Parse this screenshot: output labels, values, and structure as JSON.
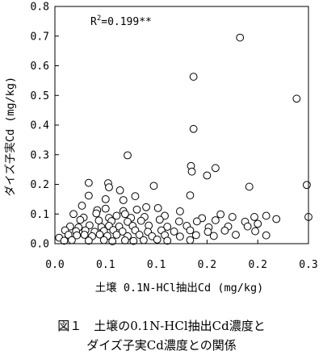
{
  "caption": {
    "line1": "図１　土壌の0.1N-HCl抽出Cd濃度と",
    "line2": "ダイズ子実Cd濃度との関係"
  },
  "chart_data": {
    "type": "scatter",
    "xlabel": "土壌 0.1N-HCl抽出Cd (mg/kg)",
    "ylabel": "ダイズ子実Cd (mg/kg)",
    "xlim": [
      0,
      0.3
    ],
    "ylim": [
      0,
      0.8
    ],
    "x_ticks": [
      "0.0",
      "0.1",
      "0.1",
      "0.2",
      "0.2",
      "0.3"
    ],
    "y_ticks": [
      "0.0",
      "0.1",
      "0.2",
      "0.3",
      "0.4",
      "0.5",
      "0.6",
      "0.7",
      "0.8"
    ],
    "annotation": {
      "base": "R",
      "sup": "2",
      "rest": "=0.199**"
    },
    "grid": false,
    "marker": "open-circle",
    "points": [
      [
        0.219,
        0.695
      ],
      [
        0.164,
        0.563
      ],
      [
        0.286,
        0.489
      ],
      [
        0.164,
        0.387
      ],
      [
        0.086,
        0.298
      ],
      [
        0.161,
        0.262
      ],
      [
        0.162,
        0.243
      ],
      [
        0.19,
        0.255
      ],
      [
        0.18,
        0.23
      ],
      [
        0.23,
        0.192
      ],
      [
        0.04,
        0.205
      ],
      [
        0.063,
        0.204
      ],
      [
        0.064,
        0.19
      ],
      [
        0.117,
        0.195
      ],
      [
        0.298,
        0.198
      ],
      [
        0.077,
        0.18
      ],
      [
        0.095,
        0.16
      ],
      [
        0.16,
        0.163
      ],
      [
        0.04,
        0.162
      ],
      [
        0.06,
        0.15
      ],
      [
        0.081,
        0.147
      ],
      [
        0.032,
        0.128
      ],
      [
        0.108,
        0.123
      ],
      [
        0.05,
        0.113
      ],
      [
        0.06,
        0.118
      ],
      [
        0.081,
        0.11
      ],
      [
        0.097,
        0.115
      ],
      [
        0.122,
        0.12
      ],
      [
        0.022,
        0.1
      ],
      [
        0.049,
        0.102
      ],
      [
        0.083,
        0.1
      ],
      [
        0.148,
        0.109
      ],
      [
        0.196,
        0.099
      ],
      [
        0.25,
        0.094
      ],
      [
        0.236,
        0.09
      ],
      [
        0.262,
        0.083
      ],
      [
        0.034,
        0.088
      ],
      [
        0.064,
        0.087
      ],
      [
        0.073,
        0.094
      ],
      [
        0.09,
        0.087
      ],
      [
        0.106,
        0.09
      ],
      [
        0.13,
        0.094
      ],
      [
        0.174,
        0.086
      ],
      [
        0.21,
        0.09
      ],
      [
        0.03,
        0.08
      ],
      [
        0.052,
        0.078
      ],
      [
        0.067,
        0.076
      ],
      [
        0.086,
        0.074
      ],
      [
        0.102,
        0.077
      ],
      [
        0.124,
        0.081
      ],
      [
        0.147,
        0.075
      ],
      [
        0.168,
        0.075
      ],
      [
        0.19,
        0.079
      ],
      [
        0.225,
        0.074
      ],
      [
        0.24,
        0.067
      ],
      [
        0.3,
        0.09
      ],
      [
        0.018,
        0.058
      ],
      [
        0.028,
        0.055
      ],
      [
        0.041,
        0.062
      ],
      [
        0.055,
        0.056
      ],
      [
        0.064,
        0.06
      ],
      [
        0.076,
        0.058
      ],
      [
        0.092,
        0.06
      ],
      [
        0.111,
        0.061
      ],
      [
        0.133,
        0.057
      ],
      [
        0.156,
        0.06
      ],
      [
        0.182,
        0.055
      ],
      [
        0.205,
        0.058
      ],
      [
        0.228,
        0.058
      ],
      [
        0.012,
        0.045
      ],
      [
        0.025,
        0.042
      ],
      [
        0.036,
        0.045
      ],
      [
        0.047,
        0.04
      ],
      [
        0.058,
        0.043
      ],
      [
        0.069,
        0.046
      ],
      [
        0.08,
        0.041
      ],
      [
        0.095,
        0.045
      ],
      [
        0.11,
        0.04
      ],
      [
        0.126,
        0.045
      ],
      [
        0.141,
        0.041
      ],
      [
        0.16,
        0.045
      ],
      [
        0.181,
        0.04
      ],
      [
        0.201,
        0.044
      ],
      [
        0.237,
        0.042
      ],
      [
        0.005,
        0.02
      ],
      [
        0.016,
        0.03
      ],
      [
        0.026,
        0.028
      ],
      [
        0.035,
        0.03
      ],
      [
        0.044,
        0.025
      ],
      [
        0.053,
        0.031
      ],
      [
        0.062,
        0.026
      ],
      [
        0.073,
        0.03
      ],
      [
        0.086,
        0.025
      ],
      [
        0.1,
        0.03
      ],
      [
        0.115,
        0.025
      ],
      [
        0.13,
        0.029
      ],
      [
        0.148,
        0.024
      ],
      [
        0.167,
        0.029
      ],
      [
        0.188,
        0.026
      ],
      [
        0.214,
        0.03
      ],
      [
        0.25,
        0.028
      ],
      [
        0.02,
        0.012
      ],
      [
        0.04,
        0.01
      ],
      [
        0.058,
        0.012
      ],
      [
        0.083,
        0.011
      ],
      [
        0.105,
        0.012
      ],
      [
        0.133,
        0.01
      ],
      [
        0.16,
        0.012
      ],
      [
        0.011,
        0.01
      ],
      [
        0.068,
        0.008
      ],
      [
        0.093,
        0.009
      ],
      [
        0.121,
        0.014
      ]
    ]
  }
}
